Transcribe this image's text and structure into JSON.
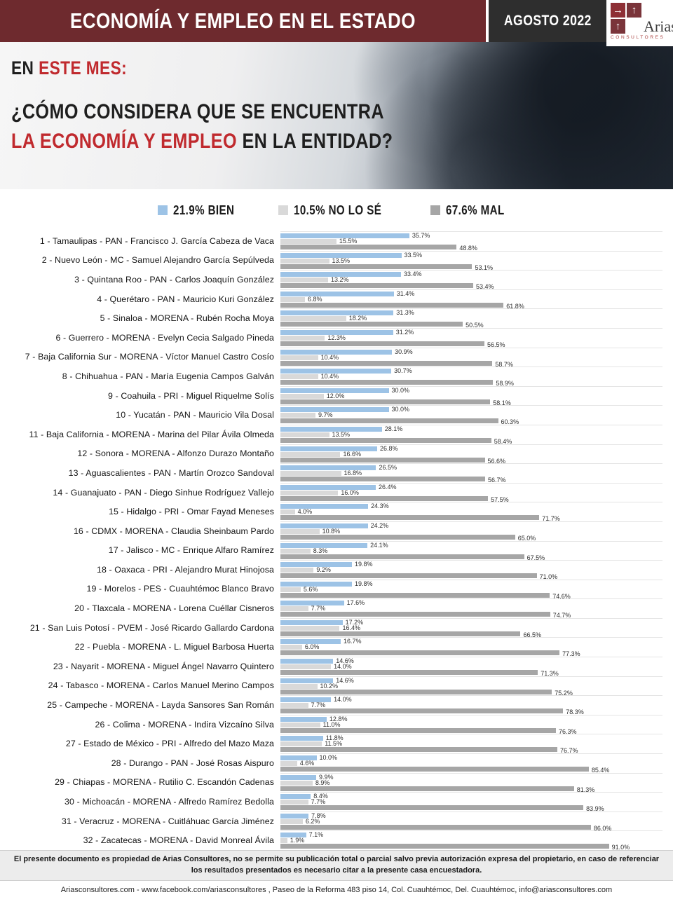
{
  "header": {
    "title": "ECONOMÍA Y EMPLEO EN EL ESTADO",
    "date_badge": "AGOSTO 2022",
    "logo": {
      "name": "Arias",
      "subtitle": "CONSULTORES",
      "arrow_right": "→",
      "arrow_up": "↑"
    }
  },
  "hero": {
    "line1_prefix": "EN ",
    "line1_accent": "ESTE MES:",
    "line2": "¿CÓMO CONSIDERA QUE SE ENCUENTRA",
    "line3_accent": "LA ECONOMÍA Y EMPLEO",
    "line3_suffix": " EN LA ENTIDAD?",
    "accent_color": "#c02a2e"
  },
  "legend": {
    "items": [
      {
        "label": "21.9% BIEN",
        "color": "#9dc3e6"
      },
      {
        "label": "10.5% NO LO SÉ",
        "color": "#d9d9d9"
      },
      {
        "label": "67.6% MAL",
        "color": "#a6a6a6"
      }
    ]
  },
  "chart_data": {
    "type": "bar",
    "orientation": "horizontal",
    "value_suffix": "%",
    "xlim": [
      0,
      105
    ],
    "legend_position": "top",
    "grid": false,
    "totals": {
      "bien": 21.9,
      "no_lo_se": 10.5,
      "mal": 67.6
    },
    "categories": [
      "1 - Tamaulipas - PAN - Francisco J. García Cabeza de Vaca",
      "2 - Nuevo León - MC - Samuel Alejandro García Sepúlveda",
      "3 - Quintana Roo - PAN - Carlos Joaquín González",
      "4 - Querétaro - PAN - Mauricio Kuri González",
      "5 - Sinaloa - MORENA - Rubén Rocha Moya",
      "6 - Guerrero - MORENA - Evelyn Cecia Salgado Pineda",
      "7 - Baja California Sur - MORENA - Víctor Manuel Castro Cosío",
      "8 - Chihuahua - PAN - María Eugenia Campos Galván",
      "9 - Coahuila - PRI - Miguel Riquelme Solís",
      "10 - Yucatán - PAN - Mauricio Vila Dosal",
      "11 - Baja California - MORENA - Marina del Pilar Ávila Olmeda",
      "12 - Sonora - MORENA - Alfonzo Durazo Montaño",
      "13 - Aguascalientes - PAN - Martín Orozco Sandoval",
      "14 - Guanajuato - PAN - Diego Sinhue Rodríguez Vallejo",
      "15 - Hidalgo - PRI - Omar Fayad Meneses",
      "16 - CDMX - MORENA - Claudia Sheinbaum Pardo",
      "17 - Jalisco - MC - Enrique Alfaro Ramírez",
      "18 - Oaxaca - PRI - Alejandro Murat Hinojosa",
      "19 - Morelos - PES - Cuauhtémoc Blanco Bravo",
      "20 - Tlaxcala - MORENA - Lorena Cuéllar Cisneros",
      "21 - San Luis Potosí - PVEM - José Ricardo Gallardo Cardona",
      "22 - Puebla - MORENA - L. Miguel Barbosa Huerta",
      "23 - Nayarit - MORENA - Miguel Ángel Navarro Quintero",
      "24 - Tabasco - MORENA - Carlos Manuel Merino Campos",
      "25 - Campeche - MORENA - Layda Sansores San Román",
      "26 - Colima - MORENA - Indira Vizcaíno Silva",
      "27 - Estado de México - PRI - Alfredo del Mazo Maza",
      "28 - Durango - PAN - José Rosas Aispuro",
      "29 - Chiapas - MORENA - Rutilio C. Escandón Cadenas",
      "30 - Michoacán - MORENA - Alfredo Ramírez Bedolla",
      "31 - Veracruz - MORENA - Cuitláhuac García Jiménez",
      "32 - Zacatecas - MORENA - David Monreal Ávila"
    ],
    "series": [
      {
        "name": "BIEN",
        "key": "bien",
        "color": "#9dc3e6",
        "values": [
          35.7,
          33.5,
          33.4,
          31.4,
          31.3,
          31.2,
          30.9,
          30.7,
          30.0,
          30.0,
          28.1,
          26.8,
          26.5,
          26.4,
          24.3,
          24.2,
          24.1,
          19.8,
          19.8,
          17.6,
          17.2,
          16.7,
          14.6,
          14.6,
          14.0,
          12.8,
          11.8,
          10.0,
          9.9,
          8.4,
          7.8,
          7.1
        ]
      },
      {
        "name": "NO LO SÉ",
        "key": "no_lo_se",
        "color": "#d9d9d9",
        "values": [
          15.5,
          13.5,
          13.2,
          6.8,
          18.2,
          12.3,
          10.4,
          10.4,
          12.0,
          9.7,
          13.5,
          16.6,
          16.8,
          16.0,
          4.0,
          10.8,
          8.3,
          9.2,
          5.6,
          7.7,
          16.4,
          6.0,
          14.0,
          10.2,
          7.7,
          11.0,
          11.5,
          4.6,
          8.9,
          7.7,
          6.2,
          1.9
        ]
      },
      {
        "name": "MAL",
        "key": "mal",
        "color": "#a6a6a6",
        "values": [
          48.8,
          53.1,
          53.4,
          61.8,
          50.5,
          56.5,
          58.7,
          58.9,
          58.1,
          60.3,
          58.4,
          56.6,
          56.7,
          57.5,
          71.7,
          65.0,
          67.5,
          71.0,
          74.6,
          74.7,
          66.5,
          77.3,
          71.3,
          75.2,
          78.3,
          76.3,
          76.7,
          85.4,
          81.3,
          83.9,
          86.0,
          91.0
        ]
      }
    ]
  },
  "footer": {
    "disclaimer": "El presente documento es propiedad de Arias Consultores, no se permite su publicación total o parcial salvo previa autorización expresa del propietario, en caso de referenciar los resultados presentados es necesario citar a la presente casa encuestadora.",
    "contact": "Ariasconsultores.com -  www.facebook.com/ariasconsultores , Paseo de la Reforma 483 piso 14, Col. Cuauhtémoc, Del. Cuauhtémoc, info@ariasconsultores.com"
  }
}
